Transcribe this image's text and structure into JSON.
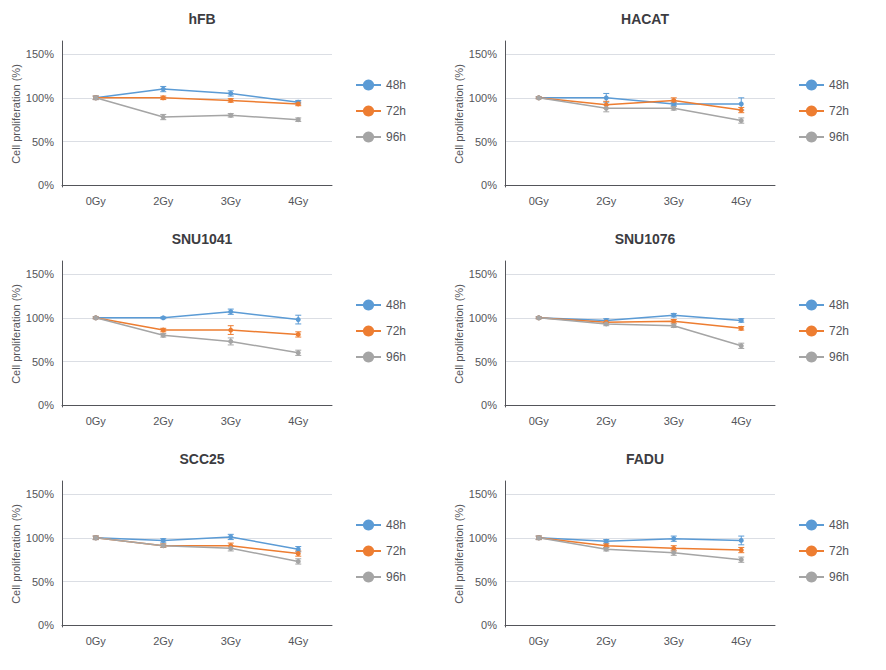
{
  "chart_data": [
    {
      "type": "line",
      "title": "hFB",
      "ylabel": "Cell proliferation (%)",
      "categories": [
        "0Gy",
        "2Gy",
        "3Gy",
        "4Gy"
      ],
      "series": [
        {
          "name": "48h",
          "color": "#5B9BD5",
          "values": [
            1.0,
            1.1,
            1.05,
            0.95
          ],
          "errors": [
            0.02,
            0.03,
            0.03,
            0.02
          ]
        },
        {
          "name": "72h",
          "color": "#ED7D31",
          "values": [
            1.0,
            1.0,
            0.97,
            0.93
          ],
          "errors": [
            0.02,
            0.02,
            0.02,
            0.02
          ]
        },
        {
          "name": "96h",
          "color": "#A5A5A5",
          "values": [
            1.0,
            0.78,
            0.8,
            0.75
          ],
          "errors": [
            0.02,
            0.03,
            0.02,
            0.02
          ]
        }
      ],
      "ylim": [
        -0.02,
        1.65
      ],
      "yticks": [
        {
          "value": 0.0,
          "label": "0%"
        },
        {
          "value": 0.5,
          "label": "50%"
        },
        {
          "value": 1.0,
          "label": "100%"
        },
        {
          "value": 1.5,
          "label": "150%"
        }
      ],
      "grid": true,
      "legend": "right",
      "marker": "circle"
    },
    {
      "type": "line",
      "title": "HACAT",
      "ylabel": "Cell proliferation (%)",
      "categories": [
        "0Gy",
        "2Gy",
        "3Gy",
        "4Gy"
      ],
      "series": [
        {
          "name": "48h",
          "color": "#5B9BD5",
          "values": [
            1.0,
            1.0,
            0.93,
            0.93
          ],
          "errors": [
            0.01,
            0.05,
            0.02,
            0.07
          ]
        },
        {
          "name": "72h",
          "color": "#ED7D31",
          "values": [
            1.0,
            0.92,
            0.97,
            0.86
          ],
          "errors": [
            0.01,
            0.04,
            0.03,
            0.03
          ]
        },
        {
          "name": "96h",
          "color": "#A5A5A5",
          "values": [
            1.0,
            0.88,
            0.88,
            0.74
          ],
          "errors": [
            0.01,
            0.04,
            0.02,
            0.03
          ]
        }
      ],
      "ylim": [
        -0.02,
        1.65
      ],
      "yticks": [
        {
          "value": 0.0,
          "label": "0%"
        },
        {
          "value": 0.5,
          "label": "50%"
        },
        {
          "value": 1.0,
          "label": "100%"
        },
        {
          "value": 1.5,
          "label": "150%"
        }
      ],
      "grid": true,
      "legend": "right",
      "marker": "circle"
    },
    {
      "type": "line",
      "title": "SNU1041",
      "ylabel": "Cell proliferation (%)",
      "categories": [
        "0Gy",
        "2Gy",
        "3Gy",
        "4Gy"
      ],
      "series": [
        {
          "name": "48h",
          "color": "#5B9BD5",
          "values": [
            1.0,
            1.0,
            1.07,
            0.98
          ],
          "errors": [
            0.01,
            0.01,
            0.03,
            0.05
          ]
        },
        {
          "name": "72h",
          "color": "#ED7D31",
          "values": [
            1.0,
            0.86,
            0.86,
            0.81
          ],
          "errors": [
            0.01,
            0.02,
            0.05,
            0.03
          ]
        },
        {
          "name": "96h",
          "color": "#A5A5A5",
          "values": [
            1.0,
            0.8,
            0.73,
            0.6
          ],
          "errors": [
            0.01,
            0.02,
            0.04,
            0.03
          ]
        }
      ],
      "ylim": [
        -0.02,
        1.65
      ],
      "yticks": [
        {
          "value": 0.0,
          "label": "0%"
        },
        {
          "value": 0.5,
          "label": "50%"
        },
        {
          "value": 1.0,
          "label": "100%"
        },
        {
          "value": 1.5,
          "label": "150%"
        }
      ],
      "grid": true,
      "legend": "right",
      "marker": "circle"
    },
    {
      "type": "line",
      "title": "SNU1076",
      "ylabel": "Cell proliferation (%)",
      "categories": [
        "0Gy",
        "2Gy",
        "3Gy",
        "4Gy"
      ],
      "series": [
        {
          "name": "48h",
          "color": "#5B9BD5",
          "values": [
            1.0,
            0.97,
            1.03,
            0.97
          ],
          "errors": [
            0.01,
            0.02,
            0.02,
            0.02
          ]
        },
        {
          "name": "72h",
          "color": "#ED7D31",
          "values": [
            1.0,
            0.95,
            0.96,
            0.88
          ],
          "errors": [
            0.01,
            0.02,
            0.02,
            0.02
          ]
        },
        {
          "name": "96h",
          "color": "#A5A5A5",
          "values": [
            1.0,
            0.93,
            0.91,
            0.68
          ],
          "errors": [
            0.01,
            0.02,
            0.02,
            0.03
          ]
        }
      ],
      "ylim": [
        -0.02,
        1.65
      ],
      "yticks": [
        {
          "value": 0.0,
          "label": "0%"
        },
        {
          "value": 0.5,
          "label": "50%"
        },
        {
          "value": 1.0,
          "label": "100%"
        },
        {
          "value": 1.5,
          "label": "150%"
        }
      ],
      "grid": true,
      "legend": "right",
      "marker": "circle"
    },
    {
      "type": "line",
      "title": "SCC25",
      "ylabel": "Cell proliferation (%)",
      "categories": [
        "0Gy",
        "2Gy",
        "3Gy",
        "4Gy"
      ],
      "series": [
        {
          "name": "48h",
          "color": "#5B9BD5",
          "values": [
            1.0,
            0.97,
            1.01,
            0.87
          ],
          "errors": [
            0.02,
            0.02,
            0.03,
            0.03
          ]
        },
        {
          "name": "72h",
          "color": "#ED7D31",
          "values": [
            1.0,
            0.91,
            0.91,
            0.82
          ],
          "errors": [
            0.02,
            0.02,
            0.03,
            0.03
          ]
        },
        {
          "name": "96h",
          "color": "#A5A5A5",
          "values": [
            1.0,
            0.91,
            0.88,
            0.73
          ],
          "errors": [
            0.02,
            0.02,
            0.03,
            0.03
          ]
        }
      ],
      "ylim": [
        -0.02,
        1.65
      ],
      "yticks": [
        {
          "value": 0.0,
          "label": "0%"
        },
        {
          "value": 0.5,
          "label": "50%"
        },
        {
          "value": 1.0,
          "label": "100%"
        },
        {
          "value": 1.5,
          "label": "150%"
        }
      ],
      "grid": true,
      "legend": "right",
      "marker": "circle"
    },
    {
      "type": "line",
      "title": "FADU",
      "ylabel": "Cell proliferation (%)",
      "categories": [
        "0Gy",
        "2Gy",
        "3Gy",
        "4Gy"
      ],
      "series": [
        {
          "name": "48h",
          "color": "#5B9BD5",
          "values": [
            1.0,
            0.96,
            0.99,
            0.97
          ],
          "errors": [
            0.02,
            0.02,
            0.03,
            0.05
          ]
        },
        {
          "name": "72h",
          "color": "#ED7D31",
          "values": [
            1.0,
            0.91,
            0.88,
            0.86
          ],
          "errors": [
            0.02,
            0.02,
            0.03,
            0.03
          ]
        },
        {
          "name": "96h",
          "color": "#A5A5A5",
          "values": [
            1.0,
            0.87,
            0.83,
            0.75
          ],
          "errors": [
            0.02,
            0.02,
            0.03,
            0.03
          ]
        }
      ],
      "ylim": [
        -0.02,
        1.65
      ],
      "yticks": [
        {
          "value": 0.0,
          "label": "0%"
        },
        {
          "value": 0.5,
          "label": "50%"
        },
        {
          "value": 1.0,
          "label": "100%"
        },
        {
          "value": 1.5,
          "label": "150%"
        }
      ],
      "grid": true,
      "legend": "right",
      "marker": "circle"
    }
  ]
}
